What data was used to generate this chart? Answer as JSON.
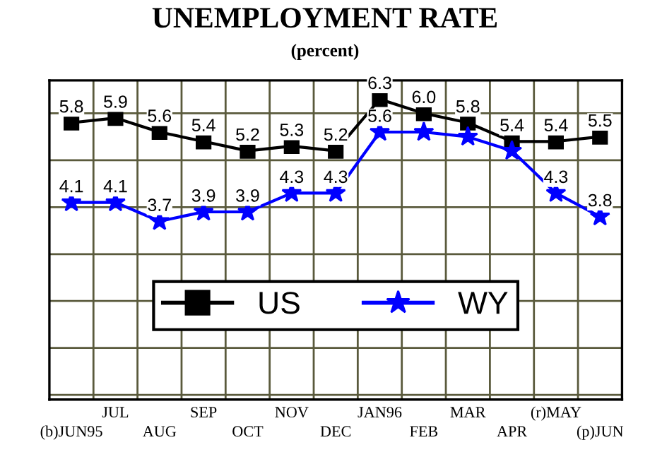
{
  "chart_data": {
    "type": "line",
    "title": "UNEMPLOYMENT RATE",
    "subtitle": "(percent)",
    "categories": [
      "(b)JUN95",
      "JUL",
      "AUG",
      "SEP",
      "OCT",
      "NOV",
      "DEC",
      "JAN96",
      "FEB",
      "MAR",
      "APR",
      "(r)MAY",
      "(p)JUN"
    ],
    "series": [
      {
        "name": "US",
        "color": "#000000",
        "marker": "square",
        "values": [
          5.8,
          5.9,
          5.6,
          5.4,
          5.2,
          5.3,
          5.2,
          6.3,
          6.0,
          5.8,
          5.4,
          5.4,
          5.5
        ],
        "value_labels": [
          "5.8",
          "5.9",
          "5.6",
          "5.4",
          "5.2",
          "5.3",
          "5.2",
          "6.3",
          "6.0",
          "5.8",
          "5.4",
          "5.4",
          "5.5"
        ]
      },
      {
        "name": "WY",
        "color": "#0000ff",
        "marker": "star",
        "values": [
          4.1,
          4.1,
          3.7,
          3.9,
          3.9,
          4.3,
          4.3,
          5.6,
          5.6,
          5.5,
          5.2,
          4.3,
          3.8
        ],
        "value_labels": [
          "4.1",
          "4.1",
          "3.7",
          "3.9",
          "3.9",
          "4.3",
          "4.3",
          "5.6",
          null,
          null,
          null,
          "4.3",
          "3.8"
        ]
      }
    ],
    "ylim": [
      -0.1,
      6.7
    ],
    "yticks": [
      {
        "value": 0,
        "label": null
      },
      {
        "value": 1,
        "label": null
      },
      {
        "value": 2,
        "label": null
      },
      {
        "value": 3,
        "label": null
      },
      {
        "value": 4,
        "label": null
      },
      {
        "value": 5,
        "label": null
      },
      {
        "value": 6,
        "label": null
      }
    ],
    "tick_labels": "x",
    "grid": true,
    "legend": "bottom",
    "line_style": "solid"
  }
}
